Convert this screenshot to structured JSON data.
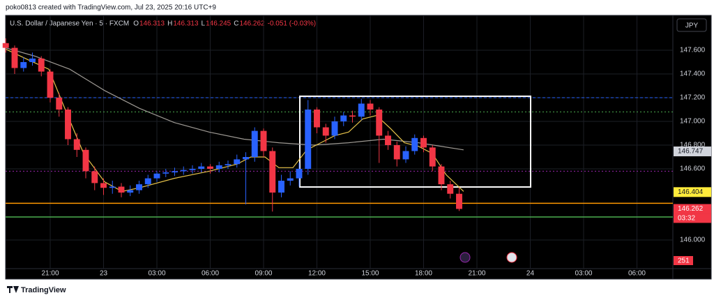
{
  "header": {
    "text": "poko0813 created with TradingView.com, Jul 23, 2025 20:16 UTC+9"
  },
  "footer": {
    "brand": "TradingView"
  },
  "chart_data": {
    "type": "candlestick",
    "symbol": "U.S. Dollar / Japanese Yen · 5 · FXCM",
    "ohlc_legend": [
      {
        "key": "O",
        "value": "146.313"
      },
      {
        "key": "H",
        "value": "146.313"
      },
      {
        "key": "L",
        "value": "146.245"
      },
      {
        "key": "C",
        "value": "146.262"
      }
    ],
    "change": "-0.051 (-0.03%)",
    "currency": "JPY",
    "up_color": "#2962ff",
    "down_color": "#f23645",
    "x": [
      -2.5,
      -2,
      -1.5,
      -1,
      -0.5,
      0,
      0.5,
      1,
      1.5,
      2,
      2.5,
      3,
      3.5,
      4,
      4.5,
      5,
      5.5,
      6,
      6.5,
      7,
      7.5,
      8,
      8.5,
      9,
      9.5,
      10,
      10.5,
      11,
      11.5,
      12,
      12.5,
      13,
      13.5,
      14,
      14.5,
      15,
      15.5,
      16,
      16.5,
      17,
      17.5,
      18,
      18.5,
      19,
      19.5,
      20,
      20.5,
      21,
      21.5,
      22,
      22.5,
      23
    ],
    "open": [
      147.66,
      147.62,
      147.45,
      147.5,
      147.53,
      147.42,
      147.2,
      147.1,
      146.85,
      146.76,
      146.58,
      146.48,
      146.44,
      146.45,
      146.4,
      146.42,
      146.47,
      146.52,
      146.56,
      146.57,
      146.58,
      146.59,
      146.6,
      146.62,
      146.6,
      146.63,
      146.64,
      146.68,
      146.7,
      146.92,
      146.75,
      146.4,
      146.5,
      146.52,
      146.6,
      147.1,
      146.95,
      146.88,
      147,
      147.05,
      147.04,
      147.15,
      147.1,
      146.88,
      146.8,
      146.68,
      146.75,
      146.86,
      146.78,
      146.62,
      146.47,
      146.39
    ],
    "high": [
      147.7,
      147.64,
      147.54,
      147.58,
      147.55,
      147.44,
      147.24,
      147.12,
      146.9,
      146.78,
      146.62,
      146.52,
      146.5,
      146.48,
      146.46,
      146.5,
      146.55,
      146.58,
      146.6,
      146.61,
      146.62,
      146.63,
      146.65,
      146.64,
      146.66,
      146.67,
      146.72,
      146.74,
      146.95,
      146.94,
      146.78,
      146.55,
      146.58,
      146.65,
      147.18,
      147.12,
      146.98,
      147.04,
      147.08,
      147.09,
      147.19,
      147.18,
      147.12,
      146.92,
      146.83,
      146.79,
      146.89,
      146.88,
      146.8,
      146.64,
      146.5,
      146.44
    ],
    "low": [
      147.58,
      147.4,
      147.42,
      147.47,
      147.38,
      147.16,
      147.04,
      146.8,
      146.7,
      146.52,
      146.42,
      146.38,
      146.39,
      146.36,
      146.37,
      146.39,
      146.44,
      146.49,
      146.53,
      146.54,
      146.55,
      146.56,
      146.57,
      146.56,
      146.57,
      146.6,
      146.61,
      146.3,
      146.66,
      146.7,
      146.24,
      146.36,
      146.46,
      146.45,
      146.55,
      146.9,
      146.82,
      146.85,
      146.96,
      146.99,
      147.01,
      147.05,
      146.65,
      146.76,
      146.62,
      146.65,
      146.72,
      146.74,
      146.58,
      146.42,
      146.35,
      146.245
    ],
    "close": [
      147.62,
      147.45,
      147.5,
      147.53,
      147.42,
      147.2,
      147.1,
      146.85,
      146.76,
      146.58,
      146.48,
      146.44,
      146.45,
      146.4,
      146.42,
      146.47,
      146.52,
      146.56,
      146.57,
      146.58,
      146.59,
      146.6,
      146.62,
      146.6,
      146.63,
      146.64,
      146.68,
      146.7,
      146.92,
      146.75,
      146.4,
      146.5,
      146.52,
      146.6,
      147.1,
      146.95,
      146.88,
      147,
      147.05,
      147.04,
      147.15,
      147.1,
      146.88,
      146.8,
      146.68,
      146.75,
      146.86,
      146.78,
      146.62,
      146.47,
      146.39,
      146.262
    ],
    "series": [
      {
        "color": "#9e9a94",
        "x": [
          -2.51,
          -0.86,
          1.1,
          3.06,
          5.02,
          6.98,
          8.94,
          10.9,
          12.86,
          14.82,
          16.78,
          18.75,
          20.71,
          23.25
        ],
        "values": [
          147.62,
          147.55,
          147.44,
          147.26,
          147.11,
          146.99,
          146.91,
          146.85,
          146.82,
          146.8,
          146.82,
          146.85,
          146.82,
          146.76
        ]
      },
      {
        "color": "#e6c24a",
        "x": [
          -2.51,
          -1.25,
          -0.08,
          0.9,
          1.88,
          3.06,
          4.04,
          5.02,
          6.98,
          8.94,
          10.51,
          11.29,
          12.08,
          12.86,
          13.65,
          14.43,
          15.22,
          16,
          16.78,
          17.57,
          18.35,
          19.14,
          19.92,
          20.71,
          21.49,
          22.27,
          23.25
        ],
        "values": [
          147.61,
          147.52,
          147.44,
          147.08,
          146.73,
          146.49,
          146.41,
          146.44,
          146.52,
          146.58,
          146.64,
          146.7,
          146.7,
          146.61,
          146.61,
          146.76,
          146.82,
          146.88,
          146.91,
          147.02,
          147.05,
          146.94,
          146.82,
          146.79,
          146.73,
          146.55,
          146.41
        ]
      }
    ],
    "levels": [
      {
        "value": 147.2,
        "color": "#2962ff",
        "style": "dashed"
      },
      {
        "value": 147.08,
        "color": "#4caf50",
        "style": "dotted"
      },
      {
        "value": 146.58,
        "color": "#9c27b0",
        "style": "dotted"
      },
      {
        "value": 146.31,
        "color": "#ff9800",
        "style": "solid"
      },
      {
        "value": 146.194,
        "color": "#4caf50",
        "style": "solid"
      }
    ],
    "rectangle": {
      "x": [
        14.04,
        27.02
      ],
      "y": [
        146.447,
        147.212
      ],
      "color": "#ffffff"
    },
    "price_labels": [
      {
        "value": 146.747,
        "color": "#d1d4dc",
        "text_color": "#131722"
      },
      {
        "value": 146.404,
        "color": "#ffeb3b",
        "text_color": "#131722"
      },
      {
        "value": 146.262,
        "color": "#f23645",
        "text_color": "#ffffff"
      }
    ],
    "countdown": "03:32",
    "volume_label": 251,
    "xlim": [
      -2.51,
      35.02
    ],
    "ylim": [
      145.759,
      147.894
    ],
    "grid": true,
    "xticks": [
      {
        "value": 0,
        "label": "21:00"
      },
      {
        "value": 3,
        "label": "23"
      },
      {
        "value": 6,
        "label": "03:00"
      },
      {
        "value": 9,
        "label": "06:00"
      },
      {
        "value": 12,
        "label": "09:00"
      },
      {
        "value": 15,
        "label": "12:00"
      },
      {
        "value": 18,
        "label": "15:00"
      },
      {
        "value": 21,
        "label": "18:00"
      },
      {
        "value": 24,
        "label": "21:00"
      },
      {
        "value": 27,
        "label": "24"
      },
      {
        "value": 30,
        "label": "03:00"
      },
      {
        "value": 33,
        "label": "06:00"
      }
    ],
    "yticks": [
      {
        "value": 147.6,
        "label": "147.600"
      },
      {
        "value": 147.4,
        "label": "147.400"
      },
      {
        "value": 147.2,
        "label": "147.200"
      },
      {
        "value": 147,
        "label": "147.000"
      },
      {
        "value": 146.8,
        "label": "146.800"
      },
      {
        "value": 146.6,
        "label": "146.600"
      },
      {
        "value": 146,
        "label": "146.000"
      }
    ]
  }
}
